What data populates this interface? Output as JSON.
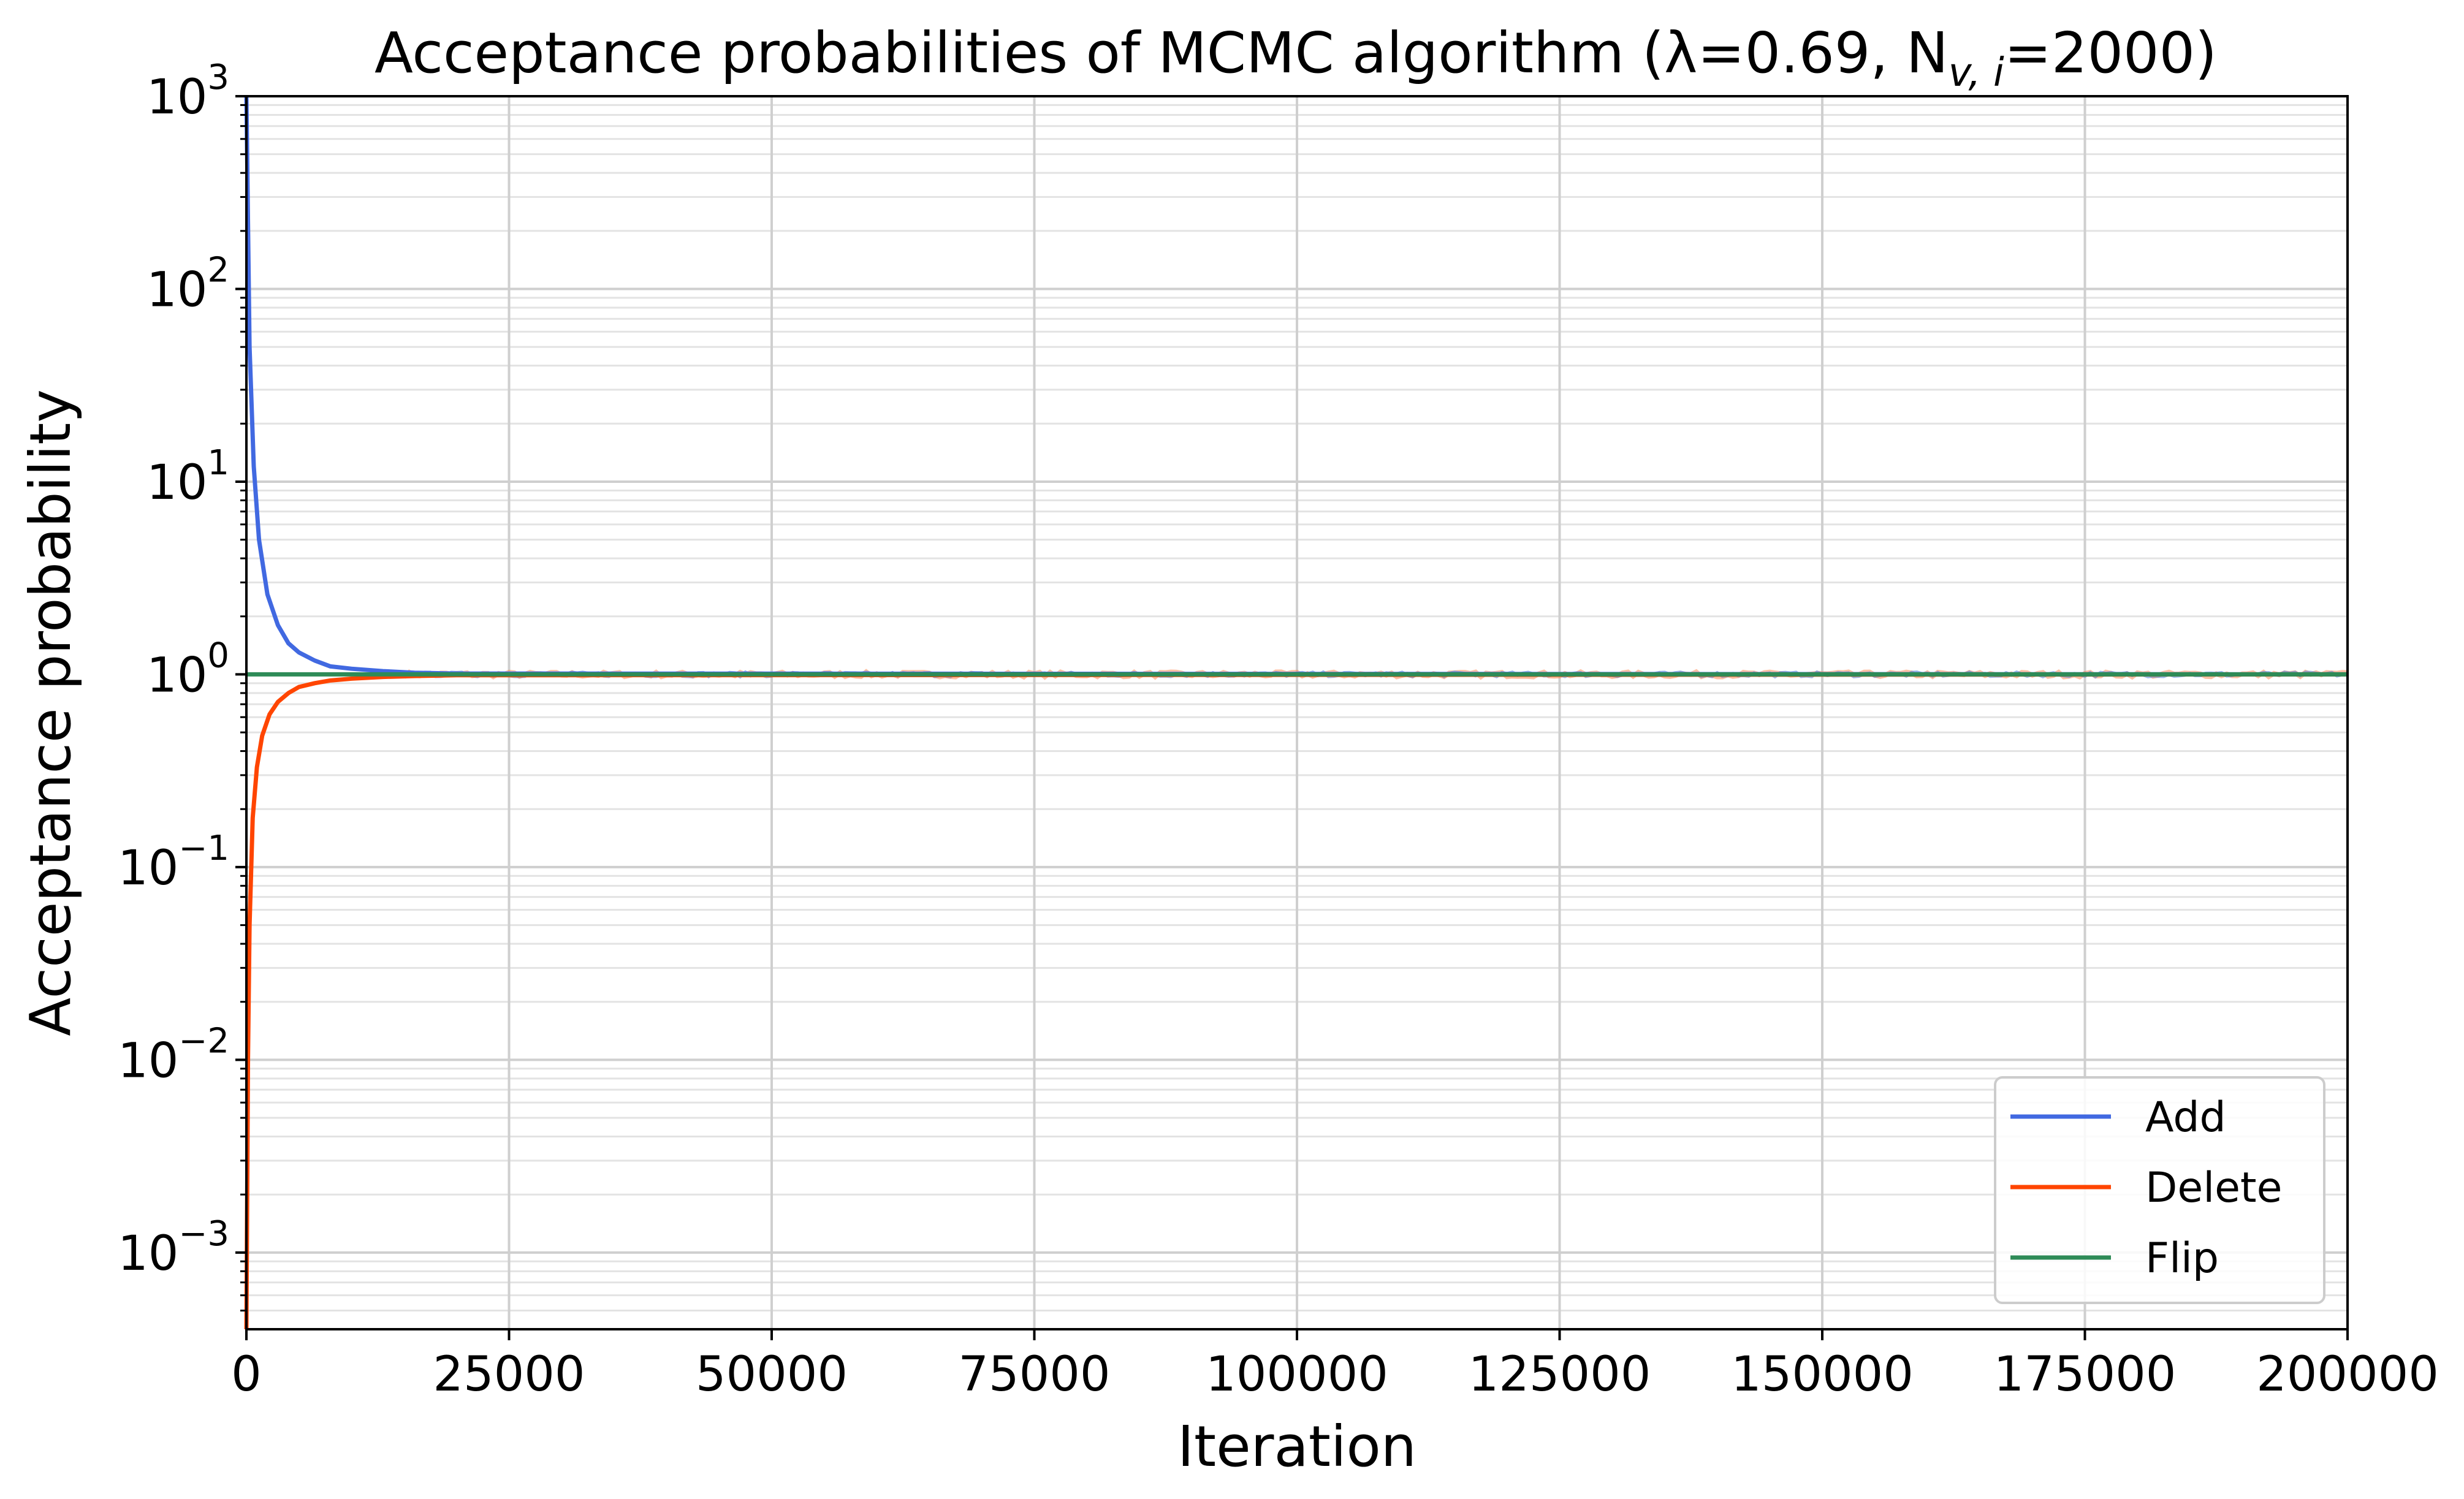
{
  "chart_data": {
    "type": "line",
    "title": "Acceptance probabilities of MCMC algorithm (λ=0.69, N",
    "title_sub": "v, i",
    "title_tail": "=2000)",
    "xlabel": "Iteration",
    "ylabel": "Acceptance probability",
    "xlim": [
      0,
      200000
    ],
    "ylim": [
      0.0004,
      1000
    ],
    "yscale": "log",
    "grid": true,
    "legend_position": "lower-right",
    "x_ticks": [
      0,
      25000,
      50000,
      75000,
      100000,
      125000,
      150000,
      175000,
      200000
    ],
    "x_tick_labels": [
      "0",
      "25000",
      "50000",
      "75000",
      "100000",
      "125000",
      "150000",
      "175000",
      "200000"
    ],
    "y_ticks": [
      {
        "value": 0.001,
        "base": "10",
        "exp": "−3"
      },
      {
        "value": 0.01,
        "base": "10",
        "exp": "−2"
      },
      {
        "value": 0.1,
        "base": "10",
        "exp": "−1"
      },
      {
        "value": 1,
        "base": "10",
        "exp": "0"
      },
      {
        "value": 10,
        "base": "10",
        "exp": "1"
      },
      {
        "value": 100,
        "base": "10",
        "exp": "2"
      },
      {
        "value": 1000,
        "base": "10",
        "exp": "3"
      }
    ],
    "series": [
      {
        "name": "Add",
        "color": "#4169e1",
        "x": [
          0,
          300,
          700,
          1200,
          2000,
          3000,
          4000,
          5000,
          6500,
          8000,
          10000,
          13000,
          16000,
          20000,
          200000
        ],
        "y": [
          1000,
          50,
          12,
          5,
          2.6,
          1.8,
          1.45,
          1.3,
          1.18,
          1.1,
          1.07,
          1.04,
          1.02,
          1.01,
          1.0
        ]
      },
      {
        "name": "Delete",
        "color": "#ff4500",
        "x": [
          0,
          150,
          300,
          600,
          1000,
          1500,
          2200,
          3000,
          4000,
          5000,
          6500,
          8000,
          10000,
          13000,
          16000,
          20000,
          200000
        ],
        "y": [
          0.0004,
          0.01,
          0.05,
          0.18,
          0.33,
          0.48,
          0.62,
          0.72,
          0.8,
          0.86,
          0.9,
          0.93,
          0.95,
          0.97,
          0.98,
          0.99,
          1.0
        ]
      },
      {
        "name": "Flip",
        "color": "#2e8b57",
        "x": [
          0,
          200000
        ],
        "y": [
          1.0,
          1.0
        ]
      }
    ]
  }
}
